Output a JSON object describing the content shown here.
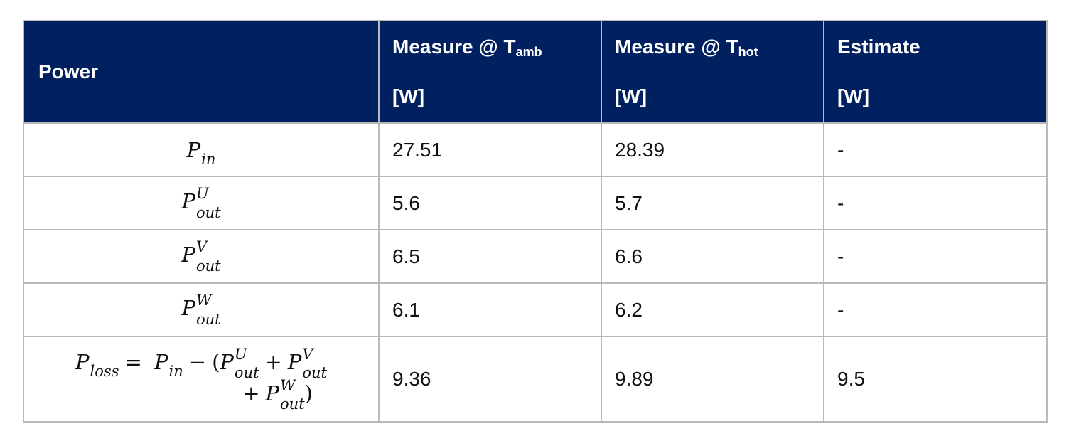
{
  "table": {
    "header": {
      "power": "Power",
      "col_amb": {
        "line1": "Measure @ T",
        "sub": "amb",
        "line2": "[W]"
      },
      "col_hot": {
        "line1": "Measure @ T",
        "sub": "hot",
        "line2": "[W]"
      },
      "col_est": {
        "line1": "Estimate",
        "line2": "[W]"
      }
    },
    "rows": [
      {
        "symbol": {
          "base": "P",
          "sup": "",
          "sub": "in"
        },
        "amb": "27.51",
        "hot": "28.39",
        "est": "-"
      },
      {
        "symbol": {
          "base": "P",
          "sup": "U",
          "sub": "out"
        },
        "amb": "5.6",
        "hot": "5.7",
        "est": "-"
      },
      {
        "symbol": {
          "base": "P",
          "sup": "V",
          "sub": "out"
        },
        "amb": "6.5",
        "hot": "6.6",
        "est": "-"
      },
      {
        "symbol": {
          "base": "P",
          "sup": "W",
          "sub": "out"
        },
        "amb": "6.1",
        "hot": "6.2",
        "est": "-"
      },
      {
        "symbol": {
          "p": "P",
          "loss": "loss",
          "eq": "=",
          "in": "in",
          "minus": "−",
          "lparen": "(",
          "U": "U",
          "V": "V",
          "W": "W",
          "out": "out",
          "plus": "+",
          "rparen": ")"
        },
        "amb": "9.36",
        "hot": "9.89",
        "est": "9.5"
      }
    ]
  },
  "colors": {
    "header_bg": "#002060",
    "header_text": "#ffffff",
    "border": "#b9b9b9"
  }
}
